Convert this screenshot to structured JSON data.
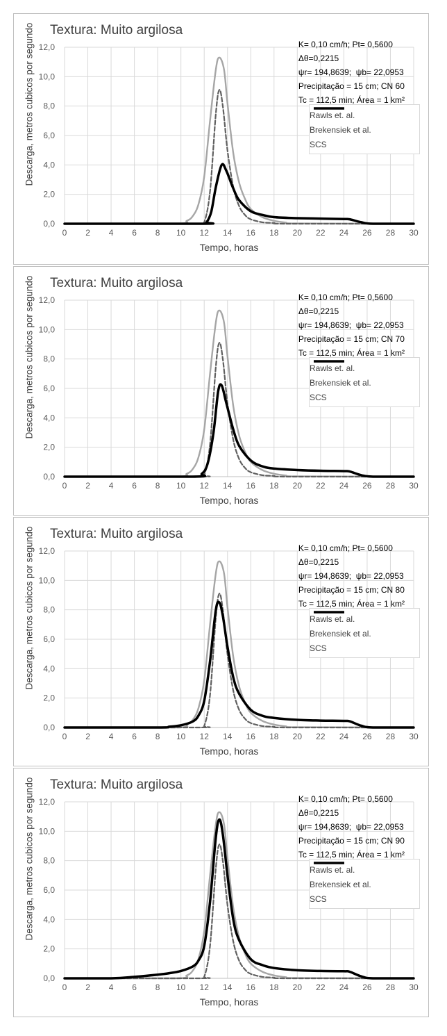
{
  "colors": {
    "rawls": "#606060",
    "brakensiek": "#a6a6a6",
    "scs": "#000000",
    "grid": "#d9d9d9",
    "axis": "#bfbfbf"
  },
  "charts": [
    {
      "title": "Textura: Muito argilosa",
      "xlabel": "Tempo, horas",
      "ylabel": "Descarga, metros cubicos por segundo",
      "info": [
        "K= 0,10 cm/h; Pt= 0,5600",
        "Δθ=0,2215",
        "ψr= 194,8639;  ψb= 22,0953",
        "Precipitação = 15 cm; CN 60",
        "Tc = 112,5 min; Área = 1 km²"
      ],
      "legend": [
        "Rawls et. al.",
        "Brekensiek et al.",
        "SCS"
      ],
      "xticks": [
        "0",
        "2",
        "4",
        "6",
        "8",
        "10",
        "12",
        "14",
        "16",
        "18",
        "20",
        "22",
        "24",
        "26",
        "28",
        "30"
      ],
      "yticks": [
        "0,0",
        "2,0",
        "4,0",
        "6,0",
        "8,0",
        "10,0",
        "12,0"
      ]
    },
    {
      "title": "Textura: Muito argilosa",
      "xlabel": "Tempo, horas",
      "ylabel": "Descarga, metros cubicos por segundo",
      "info": [
        "K= 0,10 cm/h; Pt= 0,5600",
        "Δθ=0,2215",
        "ψr= 194,8639;  ψb= 22,0953",
        "Precipitação = 15 cm; CN 70",
        "Tc = 112,5 min; Área = 1 km²"
      ],
      "legend": [
        "Rawls et. al.",
        "Brekensiek et al.",
        "SCS"
      ],
      "xticks": [
        "0",
        "2",
        "4",
        "6",
        "8",
        "10",
        "12",
        "14",
        "16",
        "18",
        "20",
        "22",
        "24",
        "26",
        "28",
        "30"
      ],
      "yticks": [
        "0,0",
        "2,0",
        "4,0",
        "6,0",
        "8,0",
        "10,0",
        "12,0"
      ]
    },
    {
      "title": "Textura: Muito argilosa",
      "xlabel": "Tempo, horas",
      "ylabel": "Descarga, metros cubicos por segundo",
      "info": [
        "K= 0,10 cm/h; Pt= 0,5600",
        "Δθ=0,2215",
        "ψr= 194,8639;  ψb= 22,0953",
        "Precipitação = 15 cm; CN 80",
        "Tc = 112,5 min; Área = 1 km²"
      ],
      "legend": [
        "Rawls et. al.",
        "Brekensiek et al.",
        "SCS"
      ],
      "xticks": [
        "0",
        "2",
        "4",
        "6",
        "8",
        "10",
        "12",
        "14",
        "16",
        "18",
        "20",
        "22",
        "24",
        "26",
        "28",
        "30"
      ],
      "yticks": [
        "0,0",
        "2,0",
        "4,0",
        "6,0",
        "8,0",
        "10,0",
        "12,0"
      ]
    },
    {
      "title": "Textura: Muito argilosa",
      "xlabel": "Tempo, horas",
      "ylabel": "Descarga, metros cubicos por segundo",
      "info": [
        "K= 0,10 cm/h; Pt= 0,5600",
        "Δθ=0,2215",
        "ψr= 194,8639;  ψb= 22,0953",
        "Precipitação = 15 cm; CN 90",
        "Tc = 112,5 min; Área = 1 km²"
      ],
      "legend": [
        "Rawls et. al.",
        "Brekensiek et al.",
        "SCS"
      ],
      "xticks": [
        "0",
        "2",
        "4",
        "6",
        "8",
        "10",
        "12",
        "14",
        "16",
        "18",
        "20",
        "22",
        "24",
        "26",
        "28",
        "30"
      ],
      "yticks": [
        "0,0",
        "2,0",
        "4,0",
        "6,0",
        "8,0",
        "10,0",
        "12,0"
      ]
    }
  ],
  "chart_data": [
    {
      "type": "line",
      "title": "Textura: Muito argilosa",
      "xlabel": "Tempo, horas",
      "ylabel": "Descarga, metros cubicos por segundo",
      "xlim": [
        0,
        30
      ],
      "ylim": [
        0,
        12
      ],
      "grid": true,
      "legend_position": "top-right",
      "series": [
        {
          "name": "Rawls et. al.",
          "style": "dashed",
          "x": [
            0,
            11.5,
            12.0,
            12.5,
            13.0,
            13.3,
            13.6,
            14.0,
            14.5,
            15.0,
            15.5,
            16.0,
            17.0,
            18.0,
            19.0,
            30
          ],
          "y": [
            0,
            0,
            0.1,
            2.2,
            7.5,
            9.1,
            8.0,
            5.0,
            2.5,
            1.2,
            0.6,
            0.3,
            0.1,
            0.05,
            0,
            0
          ]
        },
        {
          "name": "Brekensiek et al.",
          "style": "solid",
          "x": [
            0,
            9.5,
            10.5,
            11.0,
            11.5,
            12.0,
            12.5,
            13.0,
            13.3,
            13.7,
            14.0,
            14.5,
            15.0,
            15.5,
            16.0,
            17.0,
            18.0,
            19.0,
            20.0,
            30
          ],
          "y": [
            0,
            0,
            0.2,
            0.5,
            1.3,
            3.2,
            7.0,
            10.5,
            11.3,
            10.5,
            8.2,
            4.8,
            2.8,
            1.7,
            1.0,
            0.45,
            0.2,
            0.08,
            0.02,
            0
          ]
        },
        {
          "name": "SCS",
          "style": "bold",
          "x": [
            0,
            11.8,
            12.2,
            12.6,
            13.0,
            13.5,
            13.9,
            14.5,
            15.0,
            16.0,
            17.0,
            18.0,
            20.0,
            22.0,
            24.0,
            24.5,
            25.5,
            26.5,
            30
          ],
          "y": [
            0,
            0,
            0.1,
            0.8,
            2.5,
            4.0,
            3.6,
            2.4,
            1.6,
            0.85,
            0.6,
            0.45,
            0.38,
            0.35,
            0.32,
            0.3,
            0.1,
            0,
            0
          ]
        }
      ]
    },
    {
      "type": "line",
      "title": "Textura: Muito argilosa",
      "xlabel": "Tempo, horas",
      "ylabel": "Descarga, metros cubicos por segundo",
      "xlim": [
        0,
        30
      ],
      "ylim": [
        0,
        12
      ],
      "grid": true,
      "legend_position": "top-right",
      "series": [
        {
          "name": "Rawls et. al.",
          "style": "dashed",
          "x": [
            0,
            11.5,
            12.0,
            12.5,
            13.0,
            13.3,
            13.6,
            14.0,
            14.5,
            15.0,
            15.5,
            16.0,
            17.0,
            18.0,
            19.0,
            30
          ],
          "y": [
            0,
            0,
            0.1,
            2.2,
            7.5,
            9.1,
            8.0,
            5.0,
            2.5,
            1.2,
            0.6,
            0.3,
            0.1,
            0.05,
            0,
            0
          ]
        },
        {
          "name": "Brekensiek et al.",
          "style": "solid",
          "x": [
            0,
            9.5,
            10.5,
            11.0,
            11.5,
            12.0,
            12.5,
            13.0,
            13.3,
            13.7,
            14.0,
            14.5,
            15.0,
            15.5,
            16.0,
            17.0,
            18.0,
            19.0,
            20.0,
            30
          ],
          "y": [
            0,
            0,
            0.2,
            0.5,
            1.3,
            3.2,
            7.0,
            10.5,
            11.3,
            10.5,
            8.2,
            4.8,
            2.8,
            1.7,
            1.0,
            0.45,
            0.2,
            0.08,
            0.02,
            0
          ]
        },
        {
          "name": "SCS",
          "style": "bold",
          "x": [
            0,
            11.0,
            11.8,
            12.3,
            12.8,
            13.2,
            13.5,
            13.9,
            14.5,
            15.0,
            16.0,
            17.0,
            18.0,
            20.0,
            22.0,
            24.0,
            24.5,
            25.5,
            26.5,
            30
          ],
          "y": [
            0,
            0,
            0.2,
            0.9,
            3.0,
            5.8,
            6.2,
            5.0,
            3.2,
            2.1,
            1.1,
            0.7,
            0.55,
            0.45,
            0.4,
            0.38,
            0.35,
            0.1,
            0,
            0
          ]
        }
      ]
    },
    {
      "type": "line",
      "title": "Textura: Muito argilosa",
      "xlabel": "Tempo, horas",
      "ylabel": "Descarga, metros cubicos por segundo",
      "xlim": [
        0,
        30
      ],
      "ylim": [
        0,
        12
      ],
      "grid": true,
      "legend_position": "top-right",
      "series": [
        {
          "name": "Rawls et. al.",
          "style": "dashed",
          "x": [
            0,
            11.5,
            12.0,
            12.5,
            13.0,
            13.3,
            13.6,
            14.0,
            14.5,
            15.0,
            15.5,
            16.0,
            17.0,
            18.0,
            19.0,
            30
          ],
          "y": [
            0,
            0,
            0.1,
            2.2,
            7.5,
            9.1,
            8.0,
            5.0,
            2.5,
            1.2,
            0.6,
            0.3,
            0.1,
            0.05,
            0,
            0
          ]
        },
        {
          "name": "Brekensiek et al.",
          "style": "solid",
          "x": [
            0,
            9.5,
            10.5,
            11.0,
            11.5,
            12.0,
            12.5,
            13.0,
            13.3,
            13.7,
            14.0,
            14.5,
            15.0,
            15.5,
            16.0,
            17.0,
            18.0,
            19.0,
            20.0,
            30
          ],
          "y": [
            0,
            0,
            0.2,
            0.5,
            1.3,
            3.2,
            7.0,
            10.5,
            11.3,
            10.5,
            8.2,
            4.8,
            2.8,
            1.7,
            1.0,
            0.45,
            0.2,
            0.08,
            0.02,
            0
          ]
        },
        {
          "name": "SCS",
          "style": "bold",
          "x": [
            0,
            8.0,
            9.0,
            10.0,
            11.0,
            11.5,
            12.0,
            12.5,
            13.0,
            13.3,
            13.6,
            14.0,
            14.5,
            15.0,
            16.0,
            17.0,
            18.0,
            20.0,
            22.0,
            24.0,
            24.5,
            25.5,
            26.5,
            30
          ],
          "y": [
            0,
            0,
            0.05,
            0.15,
            0.4,
            0.8,
            1.8,
            4.5,
            8.0,
            8.5,
            7.6,
            5.5,
            3.4,
            2.3,
            1.2,
            0.8,
            0.65,
            0.52,
            0.47,
            0.45,
            0.42,
            0.12,
            0,
            0
          ]
        }
      ]
    },
    {
      "type": "line",
      "title": "Textura: Muito argilosa",
      "xlabel": "Tempo, horas",
      "ylabel": "Descarga, metros cubicos por segundo",
      "xlim": [
        0,
        30
      ],
      "ylim": [
        0,
        12
      ],
      "grid": true,
      "legend_position": "top-right",
      "series": [
        {
          "name": "Rawls et. al.",
          "style": "dashed",
          "x": [
            0,
            11.5,
            12.0,
            12.5,
            13.0,
            13.3,
            13.6,
            14.0,
            14.5,
            15.0,
            15.5,
            16.0,
            17.0,
            18.0,
            19.0,
            30
          ],
          "y": [
            0,
            0,
            0.1,
            2.2,
            7.5,
            9.1,
            8.0,
            5.0,
            2.5,
            1.2,
            0.6,
            0.3,
            0.1,
            0.05,
            0,
            0
          ]
        },
        {
          "name": "Brekensiek et al.",
          "style": "solid",
          "x": [
            0,
            9.5,
            10.5,
            11.0,
            11.5,
            12.0,
            12.5,
            13.0,
            13.3,
            13.7,
            14.0,
            14.5,
            15.0,
            15.5,
            16.0,
            17.0,
            18.0,
            19.0,
            20.0,
            30
          ],
          "y": [
            0,
            0,
            0.2,
            0.5,
            1.3,
            3.2,
            7.0,
            10.5,
            11.3,
            10.5,
            8.2,
            4.8,
            2.8,
            1.7,
            1.0,
            0.45,
            0.2,
            0.08,
            0.02,
            0
          ]
        },
        {
          "name": "SCS",
          "style": "bold",
          "x": [
            0,
            4.0,
            6.0,
            8.0,
            9.0,
            10.0,
            11.0,
            11.5,
            12.0,
            12.5,
            13.0,
            13.3,
            13.6,
            14.0,
            14.5,
            15.0,
            16.0,
            17.0,
            18.0,
            20.0,
            22.0,
            24.0,
            24.5,
            25.5,
            26.5,
            30
          ],
          "y": [
            0,
            0,
            0.1,
            0.25,
            0.35,
            0.5,
            0.8,
            1.2,
            2.2,
            5.2,
            9.6,
            10.8,
            9.8,
            7.0,
            4.0,
            2.6,
            1.3,
            0.9,
            0.7,
            0.55,
            0.5,
            0.48,
            0.45,
            0.13,
            0,
            0
          ]
        }
      ]
    }
  ]
}
